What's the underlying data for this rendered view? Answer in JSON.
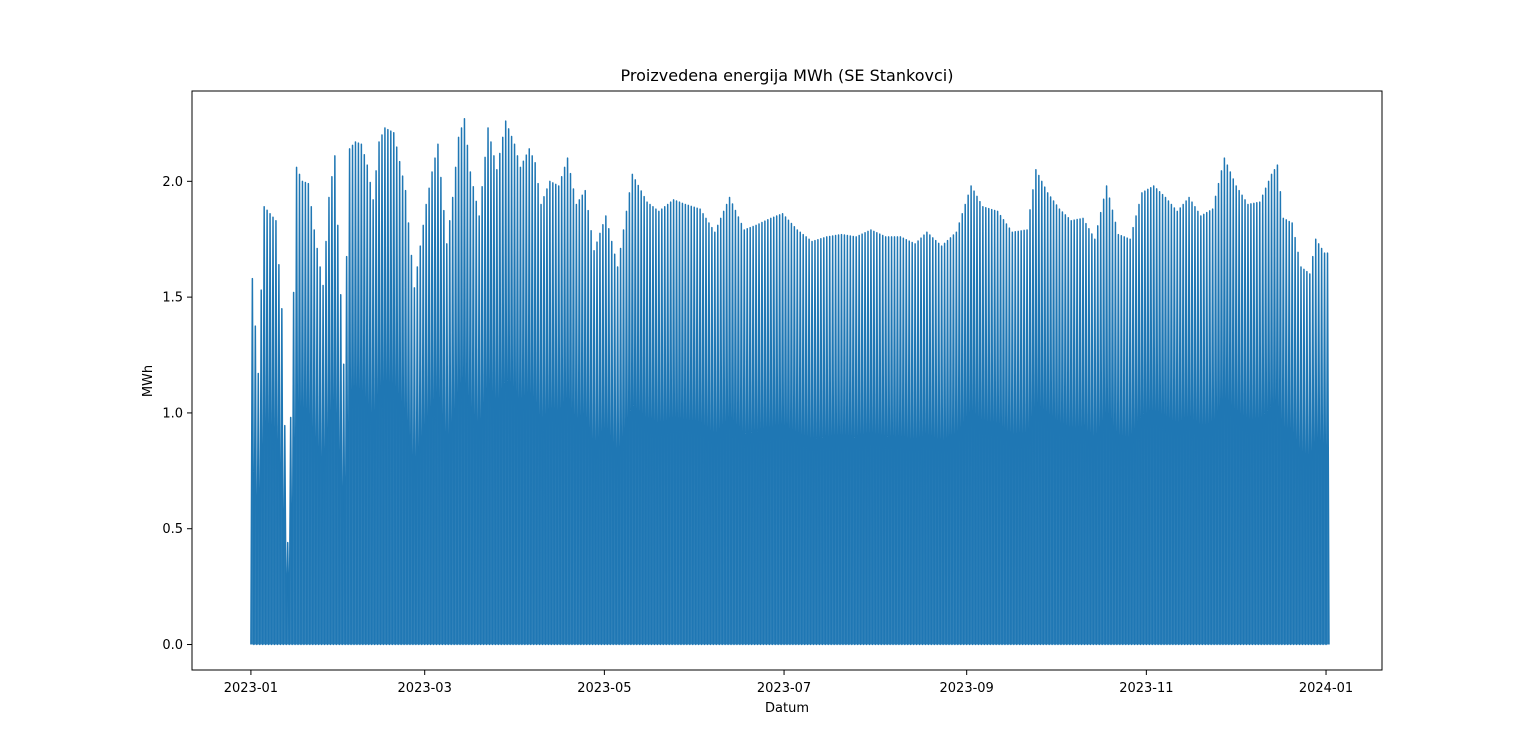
{
  "chart_data": {
    "type": "line",
    "title": "Proizvedena energija MWh (SE Stankovci)",
    "xlabel": "Datum",
    "ylabel": "MWh",
    "series_color": "#1f77b4",
    "grid": false,
    "legend": "none",
    "xlim": [
      "2022-12-12",
      "2024-01-20"
    ],
    "ylim": [
      -0.11,
      2.39
    ],
    "x_ticks": [
      "2023-01",
      "2023-03",
      "2023-05",
      "2023-07",
      "2023-09",
      "2023-11",
      "2024-01"
    ],
    "y_ticks": [
      "0.0",
      "0.5",
      "1.0",
      "1.5",
      "2.0"
    ],
    "resolution": "hourly",
    "series": [
      {
        "x_start": "2023-01-01",
        "x_end": "2024-01-01",
        "daily_peak_x": [
          "2023-01-01",
          "2023-01-03",
          "2023-01-05",
          "2023-01-09",
          "2023-01-11",
          "2023-01-13",
          "2023-01-16",
          "2023-01-18",
          "2023-01-20",
          "2023-01-22",
          "2023-01-25",
          "2023-01-27",
          "2023-01-29",
          "2023-02-01",
          "2023-02-03",
          "2023-02-05",
          "2023-02-07",
          "2023-02-09",
          "2023-02-11",
          "2023-02-13",
          "2023-02-15",
          "2023-02-18",
          "2023-02-22",
          "2023-02-25",
          "2023-03-01",
          "2023-03-03",
          "2023-03-05",
          "2023-03-08",
          "2023-03-10",
          "2023-03-12",
          "2023-03-14",
          "2023-03-16",
          "2023-03-19",
          "2023-03-22",
          "2023-03-25",
          "2023-03-28",
          "2023-03-31",
          "2023-04-02",
          "2023-04-05",
          "2023-04-07",
          "2023-04-09",
          "2023-04-12",
          "2023-04-15",
          "2023-04-18",
          "2023-04-21",
          "2023-04-24",
          "2023-04-27",
          "2023-05-01",
          "2023-05-05",
          "2023-05-10",
          "2023-05-15",
          "2023-05-19",
          "2023-05-24",
          "2023-05-28",
          "2023-06-02",
          "2023-06-07",
          "2023-06-12",
          "2023-06-17",
          "2023-06-21",
          "2023-06-26",
          "2023-06-30",
          "2023-07-05",
          "2023-07-10",
          "2023-07-15",
          "2023-07-20",
          "2023-07-25",
          "2023-07-30",
          "2023-08-04",
          "2023-08-09",
          "2023-08-14",
          "2023-08-18",
          "2023-08-23",
          "2023-08-28",
          "2023-09-02",
          "2023-09-06",
          "2023-09-11",
          "2023-09-16",
          "2023-09-21",
          "2023-09-24",
          "2023-09-28",
          "2023-10-02",
          "2023-10-06",
          "2023-10-10",
          "2023-10-14",
          "2023-10-18",
          "2023-10-22",
          "2023-10-26",
          "2023-10-30",
          "2023-11-03",
          "2023-11-07",
          "2023-11-11",
          "2023-11-15",
          "2023-11-19",
          "2023-11-23",
          "2023-11-27",
          "2023-12-01",
          "2023-12-05",
          "2023-12-09",
          "2023-12-13",
          "2023-12-15",
          "2023-12-17",
          "2023-12-20",
          "2023-12-23",
          "2023-12-26",
          "2023-12-28",
          "2023-12-31"
        ],
        "daily_peak_y": [
          1.58,
          1.17,
          1.89,
          1.83,
          1.45,
          0.44,
          2.06,
          2.0,
          1.99,
          1.79,
          1.55,
          1.93,
          2.11,
          1.21,
          2.14,
          2.17,
          2.16,
          2.07,
          1.92,
          2.17,
          2.23,
          2.21,
          1.96,
          1.54,
          1.9,
          2.04,
          2.16,
          1.73,
          1.93,
          2.19,
          2.27,
          2.04,
          1.85,
          2.23,
          2.05,
          2.26,
          2.16,
          2.06,
          2.14,
          2.08,
          1.9,
          2.0,
          1.98,
          2.1,
          1.9,
          1.96,
          1.7,
          1.85,
          1.63,
          2.03,
          1.91,
          1.87,
          1.92,
          1.9,
          1.88,
          1.78,
          1.93,
          1.79,
          1.81,
          1.84,
          1.86,
          1.79,
          1.74,
          1.76,
          1.77,
          1.76,
          1.79,
          1.76,
          1.76,
          1.73,
          1.78,
          1.72,
          1.78,
          1.98,
          1.89,
          1.87,
          1.78,
          1.79,
          2.05,
          1.95,
          1.88,
          1.83,
          1.84,
          1.75,
          1.98,
          1.77,
          1.75,
          1.95,
          1.98,
          1.93,
          1.87,
          1.93,
          1.85,
          1.88,
          2.1,
          1.98,
          1.9,
          1.91,
          2.03,
          2.07,
          1.84,
          1.82,
          1.63,
          1.6,
          1.75,
          1.69
        ]
      }
    ]
  }
}
